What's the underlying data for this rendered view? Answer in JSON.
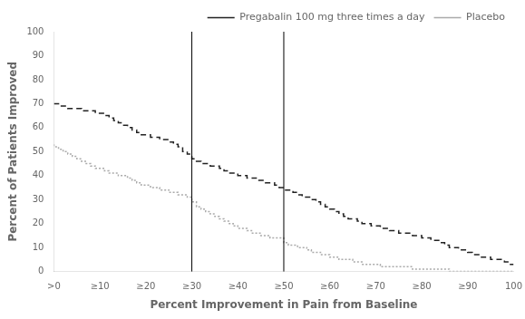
{
  "chart_data": {
    "type": "step",
    "xlabel": "Percent Improvement in Pain from Baseline",
    "ylabel": "Percent of Patients Improved",
    "x": [
      0,
      1,
      2,
      3,
      4,
      5,
      6,
      7,
      8,
      9,
      10,
      11,
      12,
      13,
      14,
      15,
      16,
      17,
      18,
      19,
      20,
      21,
      22,
      23,
      24,
      25,
      26,
      27,
      28,
      29,
      30,
      31,
      32,
      33,
      34,
      35,
      36,
      37,
      38,
      39,
      40,
      41,
      42,
      43,
      44,
      45,
      46,
      47,
      48,
      49,
      50,
      51,
      52,
      53,
      54,
      55,
      56,
      57,
      58,
      59,
      60,
      61,
      62,
      63,
      64,
      65,
      66,
      67,
      68,
      69,
      70,
      71,
      72,
      73,
      74,
      75,
      76,
      77,
      78,
      79,
      80,
      81,
      82,
      83,
      84,
      85,
      86,
      87,
      88,
      89,
      90,
      91,
      92,
      93,
      94,
      95,
      96,
      97,
      98,
      99,
      100
    ],
    "series": [
      {
        "name": "Pregabalin 100 mg three times a day",
        "color": "#222222",
        "line_style": "dashed",
        "values": [
          70,
          70,
          69,
          69,
          68,
          68,
          68,
          67,
          67,
          67,
          66,
          66,
          65,
          64,
          63,
          62,
          61,
          60,
          59,
          58,
          57,
          57,
          56,
          56,
          55,
          55,
          54,
          53,
          52,
          50,
          49,
          47,
          46,
          45,
          45,
          44,
          44,
          43,
          42,
          41,
          41,
          40,
          40,
          39,
          39,
          38,
          38,
          37,
          37,
          36,
          35,
          34,
          34,
          33,
          32,
          31,
          31,
          30,
          29,
          28,
          27,
          26,
          25,
          24,
          23,
          22,
          22,
          21,
          20,
          20,
          19,
          19,
          18,
          18,
          17,
          17,
          16,
          16,
          16,
          15,
          15,
          14,
          14,
          13,
          13,
          12,
          11,
          10,
          10,
          9,
          9,
          8,
          7,
          7,
          6,
          6,
          5,
          5,
          5,
          4,
          3
        ]
      },
      {
        "name": "Placebo",
        "color": "#aaaaaa",
        "line_style": "dotted",
        "values": [
          53,
          52,
          51,
          50,
          49,
          48,
          47,
          46,
          45,
          44,
          43,
          43,
          42,
          41,
          41,
          40,
          40,
          39,
          38,
          37,
          36,
          36,
          35,
          35,
          34,
          34,
          33,
          33,
          32,
          32,
          31,
          29,
          27,
          26,
          25,
          24,
          23,
          22,
          21,
          20,
          19,
          18,
          18,
          17,
          16,
          16,
          15,
          15,
          14,
          14,
          14,
          12,
          11,
          11,
          10,
          10,
          9,
          8,
          8,
          7,
          7,
          6,
          6,
          5,
          5,
          5,
          4,
          4,
          3,
          3,
          3,
          3,
          2,
          2,
          2,
          2,
          2,
          2,
          2,
          1,
          1,
          1,
          1,
          1,
          1,
          1,
          1,
          0,
          0,
          0,
          0,
          0,
          0,
          0,
          0,
          0,
          0,
          0,
          0,
          0,
          0
        ]
      }
    ],
    "vlines": [
      30,
      50
    ],
    "xlim": [
      0,
      100
    ],
    "ylim": [
      0,
      100
    ],
    "xticks": [
      {
        "value": 0,
        "label": ">0"
      },
      {
        "value": 10,
        "label": "≥10"
      },
      {
        "value": 20,
        "label": "≥20"
      },
      {
        "value": 30,
        "label": "≥30"
      },
      {
        "value": 40,
        "label": "≥40"
      },
      {
        "value": 50,
        "label": "≥50"
      },
      {
        "value": 60,
        "label": "≥60"
      },
      {
        "value": 70,
        "label": "≥70"
      },
      {
        "value": 80,
        "label": "≥80"
      },
      {
        "value": 90,
        "label": "≥90"
      },
      100
    ],
    "yticks": [
      0,
      10,
      20,
      30,
      40,
      50,
      60,
      70,
      80,
      90,
      100
    ],
    "legend": "upper right",
    "grid": false
  }
}
